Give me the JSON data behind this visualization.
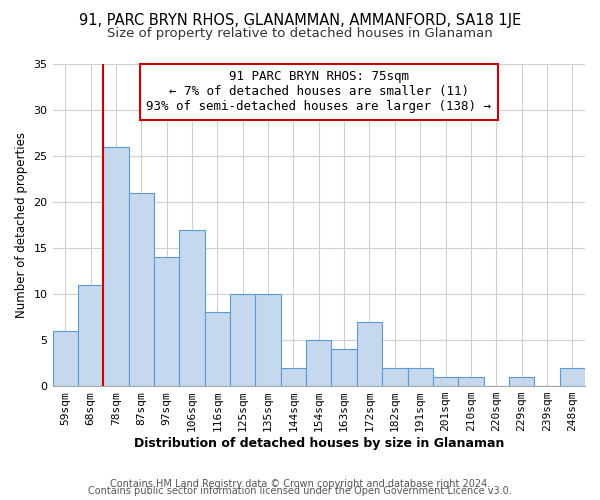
{
  "title": "91, PARC BRYN RHOS, GLANAMMAN, AMMANFORD, SA18 1JE",
  "subtitle": "Size of property relative to detached houses in Glanaman",
  "xlabel": "Distribution of detached houses by size in Glanaman",
  "ylabel": "Number of detached properties",
  "bin_labels": [
    "59sqm",
    "68sqm",
    "78sqm",
    "87sqm",
    "97sqm",
    "106sqm",
    "116sqm",
    "125sqm",
    "135sqm",
    "144sqm",
    "154sqm",
    "163sqm",
    "172sqm",
    "182sqm",
    "191sqm",
    "201sqm",
    "210sqm",
    "220sqm",
    "229sqm",
    "239sqm",
    "248sqm"
  ],
  "bar_heights": [
    6,
    11,
    26,
    21,
    14,
    17,
    8,
    10,
    10,
    2,
    5,
    4,
    7,
    2,
    2,
    1,
    1,
    0,
    1,
    0,
    2
  ],
  "bar_color": "#c5d8ed",
  "bar_edge_color": "#5b9bd5",
  "ylim": [
    0,
    35
  ],
  "yticks": [
    0,
    5,
    10,
    15,
    20,
    25,
    30,
    35
  ],
  "vline_color": "#cc0000",
  "vline_x_idx": 1.5,
  "annotation_text": "91 PARC BRYN RHOS: 75sqm\n← 7% of detached houses are smaller (11)\n93% of semi-detached houses are larger (138) →",
  "annotation_box_edge": "#cc0000",
  "footer1": "Contains HM Land Registry data © Crown copyright and database right 2024.",
  "footer2": "Contains public sector information licensed under the Open Government Licence v3.0.",
  "title_fontsize": 10.5,
  "subtitle_fontsize": 9.5,
  "xlabel_fontsize": 9,
  "ylabel_fontsize": 8.5,
  "annotation_fontsize": 9,
  "tick_fontsize": 8,
  "footer_fontsize": 7,
  "background_color": "#ffffff",
  "grid_color": "#d0d0d0"
}
